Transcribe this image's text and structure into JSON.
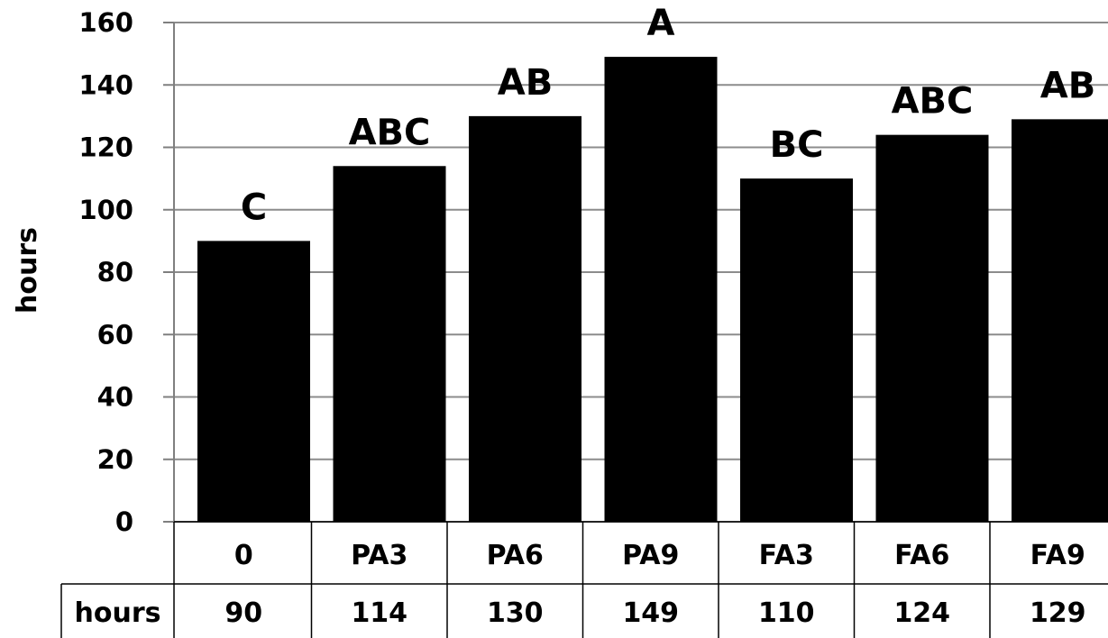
{
  "chart_data": {
    "type": "bar",
    "categories": [
      "0",
      "PA3",
      "PA6",
      "PA9",
      "FA3",
      "FA6",
      "FA9"
    ],
    "values": [
      90,
      114,
      130,
      149,
      110,
      124,
      129
    ],
    "significance_labels": [
      "C",
      "ABC",
      "AB",
      "A",
      "BC",
      "ABC",
      "AB"
    ],
    "ylabel": "hours",
    "ylim": [
      0,
      160
    ],
    "yticks": [
      0,
      20,
      40,
      60,
      80,
      100,
      120,
      140,
      160
    ],
    "grid": true,
    "bar_color": "#000000",
    "data_table": {
      "row_label": "hours",
      "values": [
        "90",
        "114",
        "130",
        "149",
        "110",
        "124",
        "129"
      ]
    }
  }
}
